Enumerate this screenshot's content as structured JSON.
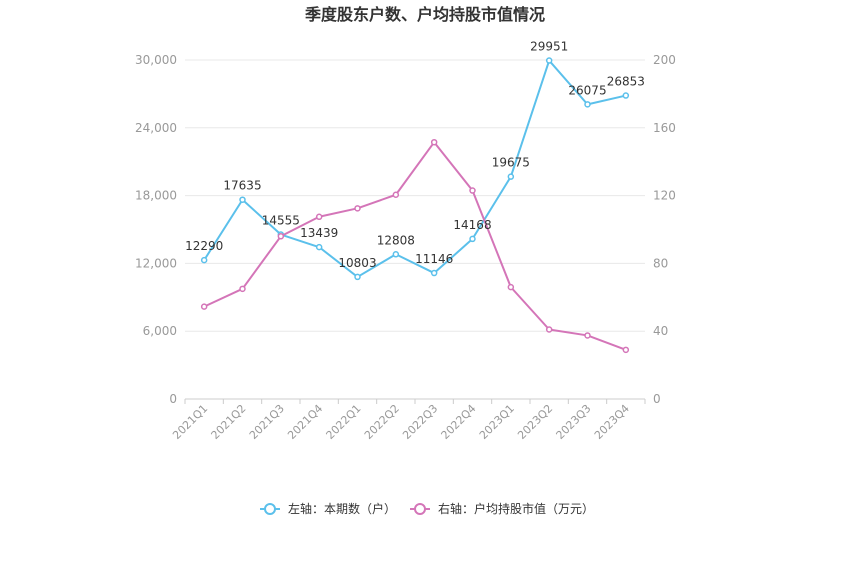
{
  "chart_data": {
    "type": "line",
    "title": "季度股东户数、户均持股市值情况",
    "categories": [
      "2021Q1",
      "2021Q2",
      "2021Q3",
      "2021Q4",
      "2022Q1",
      "2022Q2",
      "2022Q3",
      "2022Q4",
      "2023Q1",
      "2023Q2",
      "2023Q3",
      "2023Q4"
    ],
    "left_axis": {
      "min": 0,
      "max": 30000,
      "ticks": [
        "0",
        "6,000",
        "12,000",
        "18,000",
        "24,000",
        "30,000"
      ],
      "tick_values": [
        0,
        6000,
        12000,
        18000,
        24000,
        30000
      ]
    },
    "right_axis": {
      "min": 0,
      "max": 200,
      "ticks": [
        "0",
        "40",
        "80",
        "120",
        "160",
        "200"
      ],
      "tick_values": [
        0,
        40,
        80,
        120,
        160,
        200
      ]
    },
    "series": [
      {
        "name": "左轴：本期数（户）",
        "axis": "left",
        "color": "#5bc0eb",
        "values": [
          12290,
          17635,
          14555,
          13439,
          10803,
          12808,
          11146,
          14168,
          19675,
          29951,
          26075,
          26853
        ],
        "labels": [
          "12290",
          "17635",
          "14555",
          "13439",
          "10803",
          "12808",
          "11146",
          "14168",
          "19675",
          "29951",
          "26075",
          "26853"
        ]
      },
      {
        "name": "右轴：户均持股市值（万元）",
        "axis": "right",
        "color": "#d475b8",
        "values": [
          54.5,
          65,
          96,
          107.5,
          112.5,
          120.5,
          151.5,
          123,
          66,
          41,
          37.5,
          29
        ]
      }
    ],
    "grid": true,
    "legend_position": "bottom"
  }
}
